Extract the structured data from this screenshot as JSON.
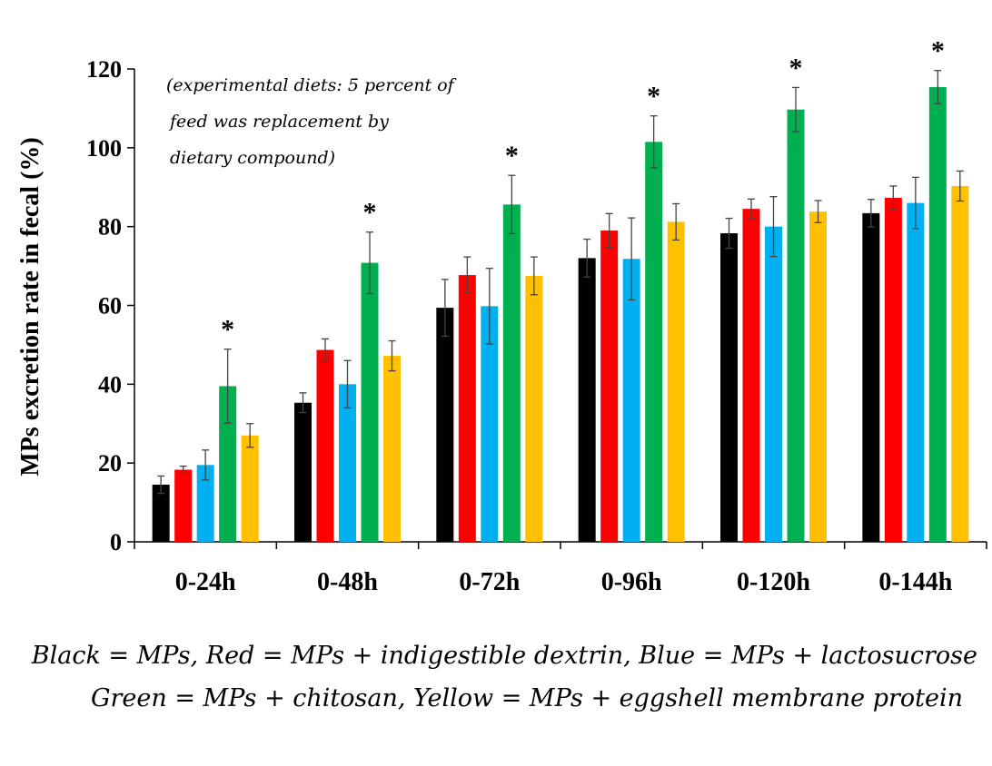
{
  "chart_data": {
    "type": "bar",
    "ylabel": "MPs excretion rate in fecal (%)",
    "ylim": [
      0,
      120
    ],
    "yticks": [
      0,
      20,
      40,
      60,
      80,
      100,
      120
    ],
    "categories": [
      "0-24h",
      "0-48h",
      "0-72h",
      "0-96h",
      "0-120h",
      "0-144h"
    ],
    "series": [
      {
        "color": "#000000",
        "values": [
          14.5,
          35.3,
          59.4,
          72.0,
          78.3,
          83.4
        ],
        "errors": [
          2.2,
          2.5,
          7.2,
          4.8,
          3.8,
          3.5
        ]
      },
      {
        "color": "#ff0000",
        "values": [
          18.3,
          48.7,
          67.7,
          79.0,
          84.5,
          87.3
        ],
        "errors": [
          0.9,
          2.8,
          4.6,
          4.3,
          2.5,
          3.0
        ]
      },
      {
        "color": "#00b0f0",
        "values": [
          19.5,
          40.0,
          59.8,
          71.8,
          80.0,
          86.0
        ],
        "errors": [
          3.8,
          6.0,
          9.6,
          10.4,
          7.6,
          6.5
        ]
      },
      {
        "color": "#00b050",
        "values": [
          39.5,
          70.8,
          85.6,
          101.5,
          109.7,
          115.4
        ],
        "errors": [
          9.4,
          7.8,
          7.4,
          6.6,
          5.6,
          4.2
        ]
      },
      {
        "color": "#ffc000",
        "values": [
          27.0,
          47.2,
          67.5,
          81.2,
          83.8,
          90.3
        ],
        "errors": [
          3.0,
          3.8,
          4.8,
          4.6,
          2.8,
          3.8
        ]
      }
    ],
    "significance": [
      "*",
      "*",
      "*",
      "*",
      "*",
      "*"
    ],
    "significant_series_index": 3,
    "annotation": [
      "(experimental diets: 5 percent of",
      "feed was replacement by",
      "dietary compound)"
    ],
    "legend_text": [
      "Black = MPs, Red = MPs + indigestible dextrin, Blue = MPs + lactosucrose",
      "Green = MPs + chitosan, Yellow = MPs + eggshell membrane protein"
    ]
  }
}
